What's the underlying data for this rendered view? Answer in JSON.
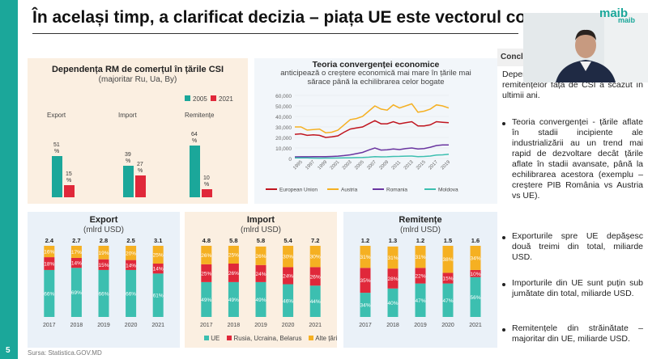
{
  "slide": {
    "title": "În același timp, a clarificat decizia – piața UE este vectorul co",
    "logo": "maib",
    "page_number": "5",
    "source": "Sursa: Statistica.GOV.MD"
  },
  "video": {
    "logo": "maib"
  },
  "csi_chart": {
    "title": "Dependența RM de comerțul în țările CSI",
    "subtitle": "(majoritar Ru, Ua, By)",
    "legend_2005": "2005",
    "legend_2021": "2021",
    "colors": {
      "y2005": "#1ba79a",
      "y2021": "#e0283a"
    },
    "chart_data": {
      "type": "bar",
      "categories": [
        "Export",
        "Import",
        "Remitențe"
      ],
      "series": [
        {
          "name": "2005",
          "values": [
            51,
            39,
            64
          ]
        },
        {
          "name": "2021",
          "values": [
            15,
            27,
            10
          ]
        }
      ]
    },
    "value_labels": {
      "export_2005": "51",
      "export_2021": "15",
      "import_2005": "39",
      "import_2021": "27",
      "rem_2005": "64",
      "rem_2021": "10",
      "pct": "%"
    }
  },
  "convergence_chart": {
    "title": "Teoria convergenței economice",
    "subtitle1": "anticipează o creștere economică mai mare în țările mai",
    "subtitle2": "sărace până la echilibrarea celor bogate",
    "y_ticks": [
      "60,000",
      "50,000",
      "40,000",
      "30,000",
      "20,000",
      "10,000",
      "0"
    ],
    "x_ticks": [
      "1995",
      "1997",
      "1999",
      "2001",
      "2003",
      "2005",
      "2007",
      "2009",
      "2011",
      "2013",
      "2015",
      "2017",
      "2019"
    ],
    "colors": {
      "eu": "#c0151f",
      "austria": "#f5b022",
      "romania": "#6a35a0",
      "moldova": "#3cbfb0"
    },
    "chart_data": {
      "type": "line",
      "x": [
        1995,
        1996,
        1997,
        1998,
        1999,
        2000,
        2001,
        2002,
        2003,
        2004,
        2005,
        2006,
        2007,
        2008,
        2009,
        2010,
        2011,
        2012,
        2013,
        2014,
        2015,
        2016,
        2017,
        2018,
        2019,
        2020
      ],
      "ylim": [
        0,
        60000
      ],
      "series": [
        {
          "name": "European Union",
          "values": [
            23000,
            23500,
            22000,
            22500,
            22000,
            20000,
            20500,
            21500,
            25000,
            28000,
            29000,
            30000,
            33000,
            36000,
            33000,
            33000,
            35000,
            33000,
            34000,
            35000,
            31000,
            31000,
            32000,
            35000,
            34500,
            34000
          ]
        },
        {
          "name": "Austria",
          "values": [
            30000,
            30000,
            27000,
            27500,
            28000,
            24500,
            25000,
            27000,
            32000,
            37000,
            38000,
            40000,
            45000,
            50000,
            47000,
            46000,
            51000,
            48000,
            50000,
            52000,
            44000,
            45000,
            47000,
            51000,
            50000,
            48000
          ]
        },
        {
          "name": "Romania",
          "values": [
            1500,
            1600,
            1600,
            1800,
            1700,
            1700,
            1900,
            2200,
            2800,
            3500,
            4600,
            5800,
            8000,
            10000,
            8000,
            8200,
            9000,
            8500,
            9500,
            10000,
            9000,
            9500,
            10700,
            12300,
            12900,
            12900
          ]
        },
        {
          "name": "Moldova",
          "values": [
            500,
            500,
            500,
            400,
            300,
            350,
            400,
            450,
            550,
            700,
            850,
            950,
            1200,
            1700,
            1500,
            1600,
            1900,
            2000,
            2200,
            2300,
            1800,
            1900,
            2300,
            3200,
            3500,
            4000
          ]
        }
      ]
    }
  },
  "share_panels": {
    "colors": {
      "ue": "#3cbfb0",
      "csi": "#e0283a",
      "other": "#f5b022"
    },
    "years": [
      "2017",
      "2018",
      "2019",
      "2020",
      "2021"
    ],
    "legend": {
      "ue": "UE",
      "csi": "Rusia, Ucraina, Belarus",
      "other": "Alte țări"
    },
    "export": {
      "title": "Export",
      "subtitle": "(mlrd USD)",
      "totals": [
        "2.4",
        "2.7",
        "2.8",
        "2.5",
        "3.1"
      ],
      "chart_data": {
        "type": "bar",
        "categories": [
          "2017",
          "2018",
          "2019",
          "2020",
          "2021"
        ],
        "series": [
          {
            "name": "UE",
            "values": [
              66,
              69,
              66,
              66,
              61
            ]
          },
          {
            "name": "Rusia, Ucraina, Belarus",
            "values": [
              18,
              14,
              15,
              14,
              14
            ]
          },
          {
            "name": "Alte țări",
            "values": [
              16,
              17,
              19,
              20,
              25
            ]
          }
        ]
      }
    },
    "import": {
      "title": "Import",
      "subtitle": "(mlrd USD)",
      "totals": [
        "4.8",
        "5.8",
        "5.8",
        "5.4",
        "7.2"
      ],
      "chart_data": {
        "type": "bar",
        "categories": [
          "2017",
          "2018",
          "2019",
          "2020",
          "2021"
        ],
        "series": [
          {
            "name": "UE",
            "values": [
              49,
              49,
              49,
              46,
              44
            ]
          },
          {
            "name": "Rusia, Ucraina, Belarus",
            "values": [
              25,
              26,
              24,
              24,
              26
            ]
          },
          {
            "name": "Alte țări",
            "values": [
              26,
              25,
              26,
              30,
              30
            ]
          }
        ]
      }
    },
    "rem": {
      "title": "Remitențe",
      "subtitle": "(mlrd USD)",
      "totals": [
        "1.2",
        "1.3",
        "1.2",
        "1.5",
        "1.6"
      ],
      "chart_data": {
        "type": "bar",
        "categories": [
          "2017",
          "2018",
          "2019",
          "2020",
          "2021"
        ],
        "series": [
          {
            "name": "UE",
            "values": [
              34,
              40,
              47,
              47,
              56
            ]
          },
          {
            "name": "Rusia, Ucraina, Belarus",
            "values": [
              35,
              28,
              22,
              15,
              10
            ]
          },
          {
            "name": "Alte țări",
            "values": [
              31,
              31,
              31,
              38,
              34
            ]
          }
        ]
      }
    }
  },
  "conclusions": {
    "header": "Concluz",
    "intro": "Dependența comerțului și remitențelor față de CSI a scăzut în ultimii ani.",
    "b1": "Teoria convergenței - țările aflate în stadii incipiente ale industrializării au un trend mai rapid de dezvoltare decât țările aflate în stadii avansate, până la echilibrarea acestora (exemplu – creștere PIB România vs Austria vs UE).",
    "b2": "Exporturile spre UE depășesc două treimi din total, miliarde USD.",
    "b3": "Importurile din UE sunt puțin sub jumătate din total, miliarde USD.",
    "b4": "Remitențele din străinătate – majoritar din UE, miliarde USD."
  }
}
